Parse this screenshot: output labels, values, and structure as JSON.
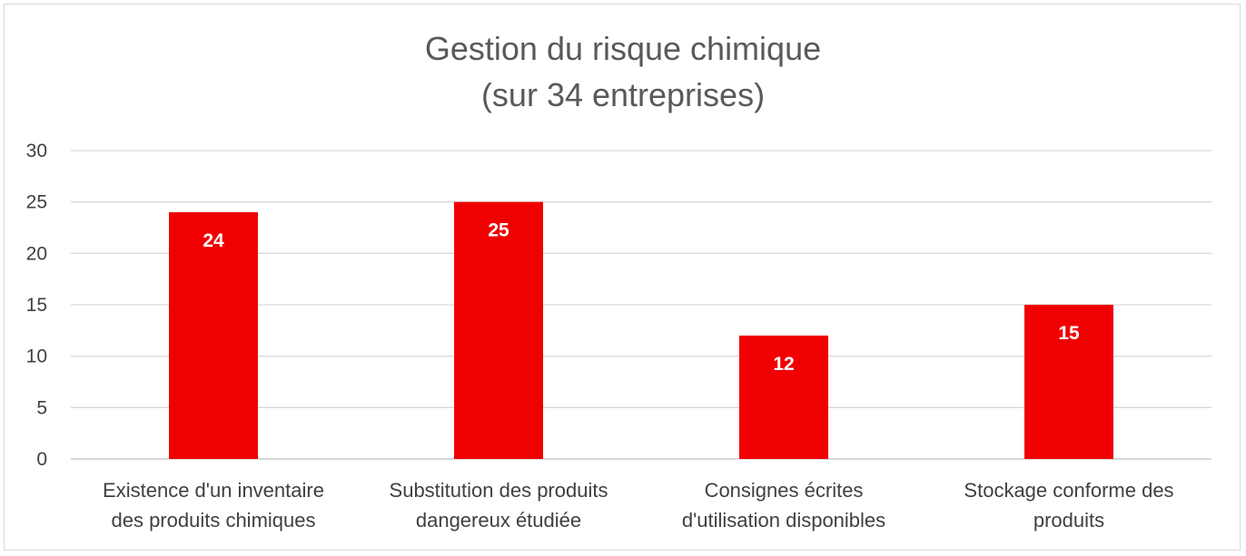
{
  "chart_data": {
    "type": "bar",
    "title": "Gestion du risque chimique",
    "subtitle": "(sur 34 entreprises)",
    "categories": [
      [
        "Existence d'un inventaire",
        "des produits chimiques"
      ],
      [
        "Substitution des produits",
        "dangereux étudiée"
      ],
      [
        "Consignes écrites",
        "d'utilisation disponibles"
      ],
      [
        "Stockage conforme des",
        "produits"
      ]
    ],
    "values": [
      24,
      25,
      12,
      15
    ],
    "data_labels": [
      "24",
      "25",
      "12",
      "15"
    ],
    "yticks": [
      "0",
      "5",
      "10",
      "15",
      "20",
      "25",
      "30"
    ],
    "ylim": [
      0,
      30
    ],
    "grid": true,
    "legend": "none",
    "colors": {
      "bar": "#f00000",
      "gridline": "#d9d9d9",
      "text": "#404040",
      "title": "#595959"
    }
  }
}
